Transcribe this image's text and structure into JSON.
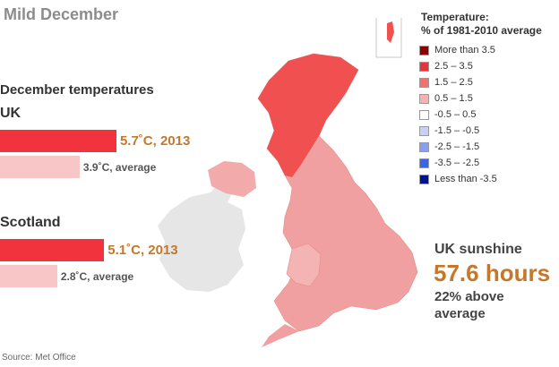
{
  "title": "Mild December",
  "bars_heading": "December temperatures",
  "regions": [
    {
      "name": "UK",
      "value_2013": 5.7,
      "label_2013": "5.7˚C, 2013",
      "value_avg": 3.9,
      "label_avg": "3.9˚C, average"
    },
    {
      "name": "Scotland",
      "value_2013": 5.1,
      "label_2013": "5.1˚C, 2013",
      "value_avg": 2.8,
      "label_avg": "2.8˚C, average"
    }
  ],
  "colors": {
    "bar_2013": "#f0333c",
    "bar_avg": "#f8c6c6",
    "label_2013": "#c5782a",
    "map_fill": "#f0a0a0",
    "map_scotland": "#f05050",
    "ireland": "#e6e6e6"
  },
  "legend": {
    "title_line1": "Temperature:",
    "title_line2": "% of 1981-2010 average",
    "items": [
      {
        "label": "More than 3.5",
        "color": "#8b0000"
      },
      {
        "label": "2.5 – 3.5",
        "color": "#e8333a"
      },
      {
        "label": "1.5 – 2.5",
        "color": "#f27070"
      },
      {
        "label": "0.5 – 1.5",
        "color": "#f6b2b2"
      },
      {
        "label": "-0.5 – 0.5",
        "color": "#ffffff"
      },
      {
        "label": "-1.5 – -0.5",
        "color": "#c8d0f4"
      },
      {
        "label": "-2.5 – -1.5",
        "color": "#8a9ef0"
      },
      {
        "label": "-3.5 – -2.5",
        "color": "#3c62e6"
      },
      {
        "label": "Less than -3.5",
        "color": "#00138c"
      }
    ]
  },
  "sunshine": {
    "heading": "UK sunshine",
    "value": "57.6 hours",
    "note": "22% above average"
  },
  "source": "Source: Met Office"
}
